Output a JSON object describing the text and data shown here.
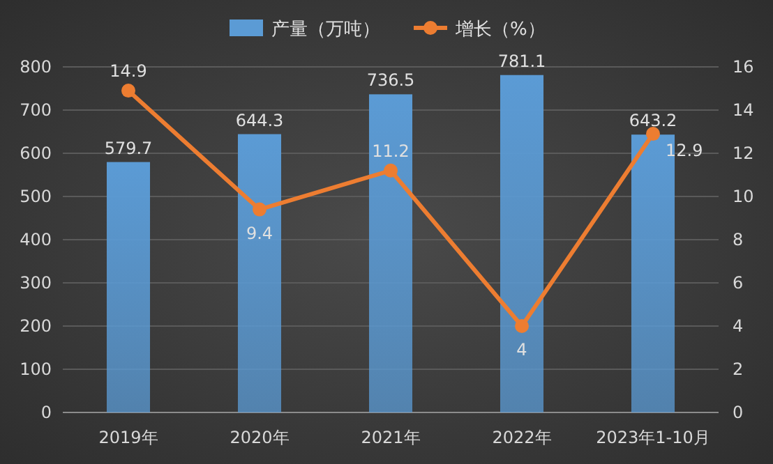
{
  "chart_data": {
    "type": "bar",
    "categories": [
      "2019年",
      "2020年",
      "2021年",
      "2022年",
      "2023年1-10月"
    ],
    "series": [
      {
        "name": "产量（万吨）",
        "color": "#5b9bd5",
        "values": [
          579.7,
          644.3,
          736.5,
          781.1,
          643.2
        ]
      },
      {
        "name": "增长（%）",
        "type": "line",
        "axis": "y2",
        "color": "#ed7d31",
        "marker": "circle",
        "values": [
          14.9,
          9.4,
          11.2,
          4,
          12.9
        ]
      }
    ],
    "ylim": [
      0,
      800
    ],
    "yticks": [
      0,
      100,
      200,
      300,
      400,
      500,
      600,
      700,
      800
    ],
    "y2lim": [
      0,
      16
    ],
    "y2ticks": [
      0,
      2,
      4,
      6,
      8,
      10,
      12,
      14,
      16
    ],
    "grid": "y",
    "legend": "top",
    "data_labels": true
  }
}
